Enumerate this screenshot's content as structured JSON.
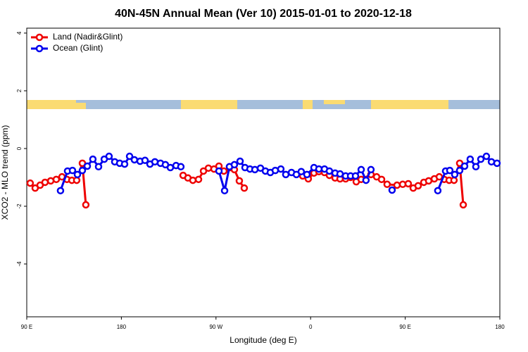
{
  "chart_data": {
    "type": "line",
    "title": "40N-45N Annual Mean (Ver 10)   2015-01-01 to 2020-12-18",
    "x_label": "Longitude (deg E)",
    "y_label": "XCO2 - MLO trend (ppm)",
    "xlim": [
      90,
      540
    ],
    "xticks": [
      {
        "value": 90,
        "label": "90 E"
      },
      {
        "value": 180,
        "label": "180"
      },
      {
        "value": 270,
        "label": "90 W"
      },
      {
        "value": 360,
        "label": "0"
      },
      {
        "value": 450,
        "label": "90 E"
      },
      {
        "value": 540,
        "label": "180"
      }
    ],
    "ylim": [
      -5.83,
      4.17
    ],
    "yticks": [
      -4,
      -2,
      0,
      2,
      4
    ],
    "legend": "top-left",
    "series": [
      {
        "name": "Land (Nadir&Glint)",
        "color": "#ee0000",
        "x": [
          93.3,
          98.0,
          102.7,
          107.4,
          112.8,
          118.1,
          123.5,
          128.2,
          132.9,
          137.5,
          142.9,
          146.2,
          200,
          238.7,
          243.3,
          248.0,
          253.4,
          258.1,
          262.8,
          268.1,
          272.8,
          277.5,
          287.5,
          292.2,
          296.9,
          360,
          352.5,
          357.8,
          363.2,
          367.9,
          373.2,
          377.9,
          383.3,
          388.0,
          393.3,
          398.0,
          403.4,
          408.1,
          417.4,
          422.8,
          427.5,
          432.8,
          442.2,
          447.6,
          452.9,
          457.6,
          462.3,
          467.7,
          472.3,
          477.7,
          482.4,
          487.1,
          491.8,
          496.4,
          501.8,
          505.2
        ],
        "values": [
          -1.2,
          -1.37,
          -1.27,
          -1.17,
          -1.12,
          -1.07,
          -0.98,
          -1.07,
          -1.1,
          -1.1,
          -0.51,
          -1.95,
          null,
          -0.93,
          -1.02,
          -1.1,
          -1.07,
          -0.78,
          -0.68,
          -0.71,
          -0.61,
          -0.78,
          -0.73,
          -1.12,
          -1.37,
          null,
          -0.95,
          -1.05,
          -0.85,
          -0.8,
          -0.83,
          -0.93,
          -1.02,
          -1.05,
          -1.05,
          -1.0,
          -1.15,
          -1.07,
          -0.9,
          -0.98,
          -1.07,
          -1.24,
          -1.27,
          -1.24,
          -1.22,
          -1.37,
          -1.29,
          -1.17,
          -1.12,
          -1.05,
          -0.98,
          -1.07,
          -1.1,
          -1.1,
          -0.51,
          -1.95
        ]
      },
      {
        "name": "Ocean (Glint)",
        "color": "#0000ee",
        "x": [
          122.1,
          128.8,
          133.5,
          138.2,
          142.9,
          147.6,
          152.9,
          158.3,
          163.7,
          168.3,
          173.7,
          178.4,
          183.1,
          187.8,
          192.4,
          197.8,
          202.5,
          207.2,
          211.9,
          217.2,
          221.9,
          226.6,
          232.0,
          236.6,
          270,
          272.8,
          278.2,
          282.8,
          287.5,
          292.9,
          297.6,
          302.3,
          307.0,
          312.3,
          317.0,
          321.7,
          326.4,
          331.7,
          336.4,
          341.8,
          346.5,
          351.1,
          356.5,
          363.2,
          367.9,
          373.2,
          377.9,
          383.3,
          388.0,
          393.3,
          398.0,
          402.7,
          408.1,
          412.7,
          417.4,
          440,
          437.5,
          450,
          481.0,
          488.4,
          492.4,
          497.1,
          501.8,
          506.5,
          511.8,
          517.2,
          521.9,
          527.2,
          532.0,
          537.3
        ],
        "values": [
          -1.46,
          -0.78,
          -0.76,
          -0.9,
          -0.76,
          -0.61,
          -0.37,
          -0.63,
          -0.37,
          -0.27,
          -0.46,
          -0.51,
          -0.54,
          -0.27,
          -0.39,
          -0.44,
          -0.41,
          -0.54,
          -0.46,
          -0.51,
          -0.56,
          -0.66,
          -0.59,
          -0.63,
          null,
          -0.78,
          -1.46,
          -0.63,
          -0.56,
          -0.44,
          -0.66,
          -0.71,
          -0.73,
          -0.68,
          -0.78,
          -0.83,
          -0.76,
          -0.71,
          -0.9,
          -0.83,
          -0.9,
          -0.8,
          -0.9,
          -0.66,
          -0.71,
          -0.71,
          -0.78,
          -0.85,
          -0.88,
          -0.95,
          -0.95,
          -0.95,
          -0.73,
          -1.1,
          -0.73,
          null,
          -1.44,
          null,
          -1.46,
          -0.78,
          -0.76,
          -0.9,
          -0.76,
          -0.61,
          -0.37,
          -0.63,
          -0.37,
          -0.27,
          -0.46,
          -0.51
        ]
      }
    ]
  }
}
